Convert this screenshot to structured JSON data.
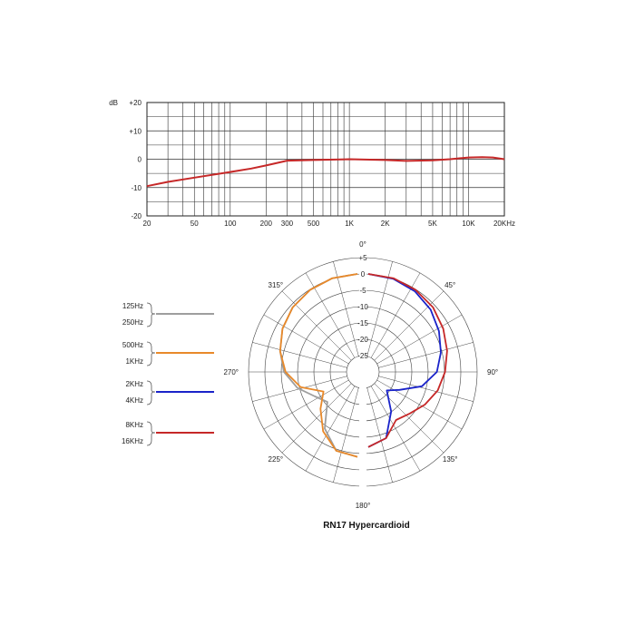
{
  "chart_data": [
    {
      "type": "line",
      "ylabel": "dB",
      "xlabel": "",
      "x_scale": "log",
      "xlim": [
        20,
        20000
      ],
      "ylim": [
        -20,
        20
      ],
      "grid": true,
      "x_ticks": [
        {
          "v": 20,
          "label": "20"
        },
        {
          "v": 50,
          "label": "50"
        },
        {
          "v": 100,
          "label": "100"
        },
        {
          "v": 200,
          "label": "200"
        },
        {
          "v": 300,
          "label": "300"
        },
        {
          "v": 500,
          "label": "500"
        },
        {
          "v": 1000,
          "label": "1K"
        },
        {
          "v": 2000,
          "label": "2K"
        },
        {
          "v": 5000,
          "label": "5K"
        },
        {
          "v": 10000,
          "label": "10K"
        },
        {
          "v": 20000,
          "label": "20KHz"
        }
      ],
      "y_ticks": [
        {
          "v": 20,
          "label": "+20"
        },
        {
          "v": 10,
          "label": "+10"
        },
        {
          "v": 0,
          "label": "0"
        },
        {
          "v": -10,
          "label": "-10"
        },
        {
          "v": -20,
          "label": "-20"
        }
      ],
      "series": [
        {
          "color": "#c62828",
          "x": [
            20,
            30,
            50,
            100,
            150,
            200,
            300,
            500,
            1000,
            2000,
            3000,
            5000,
            7000,
            10000,
            13000,
            16000,
            20000
          ],
          "y": [
            -9.5,
            -8,
            -6.5,
            -4.5,
            -3.3,
            -2.2,
            -0.5,
            -0.3,
            0,
            -0.3,
            -0.6,
            -0.4,
            0,
            0.6,
            0.7,
            0.6,
            0
          ]
        }
      ]
    },
    {
      "type": "polar",
      "title": "RN17 Hypercardioid",
      "angle_labels": [
        {
          "deg": 0,
          "label": "0°"
        },
        {
          "deg": 45,
          "label": "45°"
        },
        {
          "deg": 90,
          "label": "90°"
        },
        {
          "deg": 135,
          "label": "135°"
        },
        {
          "deg": 180,
          "label": "180°"
        },
        {
          "deg": 225,
          "label": "225°"
        },
        {
          "deg": 270,
          "label": "270°"
        },
        {
          "deg": 315,
          "label": "315°"
        }
      ],
      "radial_labels": [
        {
          "v": 5,
          "label": "+5"
        },
        {
          "v": 0,
          "label": "0"
        },
        {
          "v": -5,
          "label": "-5"
        },
        {
          "v": -10,
          "label": "-10"
        },
        {
          "v": -15,
          "label": "-15"
        },
        {
          "v": -20,
          "label": "-20"
        },
        {
          "v": -25,
          "label": "-25"
        }
      ],
      "rlim": [
        -30,
        5
      ],
      "series": [
        {
          "name": "125Hz / 250Hz",
          "labels": [
            "125Hz",
            "250Hz"
          ],
          "color": "#9e9e9e",
          "side": "left",
          "angles": [
            0,
            15,
            30,
            45,
            60,
            75,
            90,
            105,
            120,
            135,
            150,
            165,
            180
          ],
          "db": [
            0,
            -0.3,
            -1,
            -2,
            -3.5,
            -5.5,
            -7.5,
            -11,
            -15,
            -17,
            -10,
            -5,
            -4
          ]
        },
        {
          "name": "500Hz / 1KHz",
          "labels": [
            "500Hz",
            "1KHz"
          ],
          "color": "#e8892a",
          "side": "left",
          "angles": [
            0,
            15,
            30,
            45,
            60,
            75,
            90,
            105,
            120,
            135,
            150,
            165,
            180
          ],
          "db": [
            0,
            -0.3,
            -1,
            -2,
            -3.5,
            -5.5,
            -8,
            -12,
            -18,
            -14,
            -9,
            -5,
            -4
          ]
        },
        {
          "name": "2KHz / 4KHz",
          "labels": [
            "2KHz",
            "4KHz"
          ],
          "color": "#1a23c9",
          "side": "right",
          "angles": [
            0,
            15,
            30,
            45,
            60,
            75,
            90,
            105,
            120,
            135,
            150,
            165,
            180
          ],
          "db": [
            0,
            -0.5,
            -1.5,
            -3,
            -5,
            -7,
            -9,
            -13,
            -19,
            -22,
            -16,
            -9,
            -7
          ]
        },
        {
          "name": "8KHz / 16KHz",
          "labels": [
            "8KHz",
            "16KHz"
          ],
          "color": "#c62828",
          "side": "right",
          "angles": [
            0,
            15,
            30,
            45,
            60,
            75,
            90,
            105,
            120,
            135,
            150,
            165,
            180
          ],
          "db": [
            0,
            -0.3,
            -1,
            -2,
            -3.5,
            -5,
            -6.5,
            -8,
            -10,
            -12,
            -13,
            -9,
            -7
          ]
        }
      ]
    }
  ]
}
